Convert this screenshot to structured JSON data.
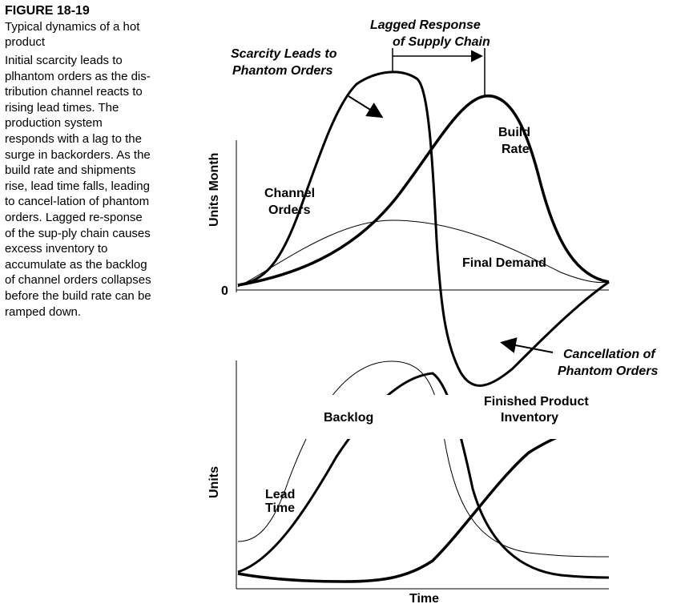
{
  "figure": {
    "number": "FIGURE 18-19",
    "title": "Typical dynamics of a hot product",
    "description": "Initial scarcity leads to plhantom orders as the dis-tribution channel reacts to rising lead times. The production system responds with a lag to the surge in backorders. As the build rate and shipments rise, lead time falls, leading to cancel-lation of phantom orders. Lagged re-sponse of the sup-ply chain causes excess inventory to accumulate as the backlog of channel orders collapses before the build rate can be ramped down."
  },
  "chart_data": [
    {
      "type": "line",
      "ylabel": "Units Month",
      "zero_label": "0",
      "series": [
        {
          "name": "Channel Orders",
          "style": "thick"
        },
        {
          "name": "Build Rate",
          "style": "thick"
        },
        {
          "name": "Final Demand",
          "style": "thin"
        }
      ],
      "annotations": [
        "Scarcity Leads to Phantom Orders",
        "Lagged Response of Supply Chain",
        "Cancellation of Phantom Orders"
      ]
    },
    {
      "type": "line",
      "ylabel": "Units",
      "xlabel": "Time",
      "series": [
        {
          "name": "Lead Time",
          "style": "thin"
        },
        {
          "name": "Backlog",
          "style": "thick"
        },
        {
          "name": "Finished Product Inventory",
          "style": "thick"
        }
      ]
    }
  ],
  "labels": {
    "scarcity_line1": "Scarcity Leads to",
    "scarcity_line2": "Phantom Orders",
    "lagged_line1": "Lagged Response",
    "lagged_line2": "of Supply Chain",
    "build_line1": "Build",
    "build_line2": "Rate",
    "channel_line1": "Channel",
    "channel_line2": "Orders",
    "final_demand": "Final Demand",
    "cancel_line1": "Cancellation of",
    "cancel_line2": "Phantom Orders",
    "units_month": "Units Month",
    "zero": "0",
    "units": "Units",
    "lead_line1": "Lead",
    "lead_line2": "Time",
    "backlog": "Backlog",
    "finished_line1": "Finished Product",
    "finished_line2": "Inventory",
    "time": "Time"
  }
}
